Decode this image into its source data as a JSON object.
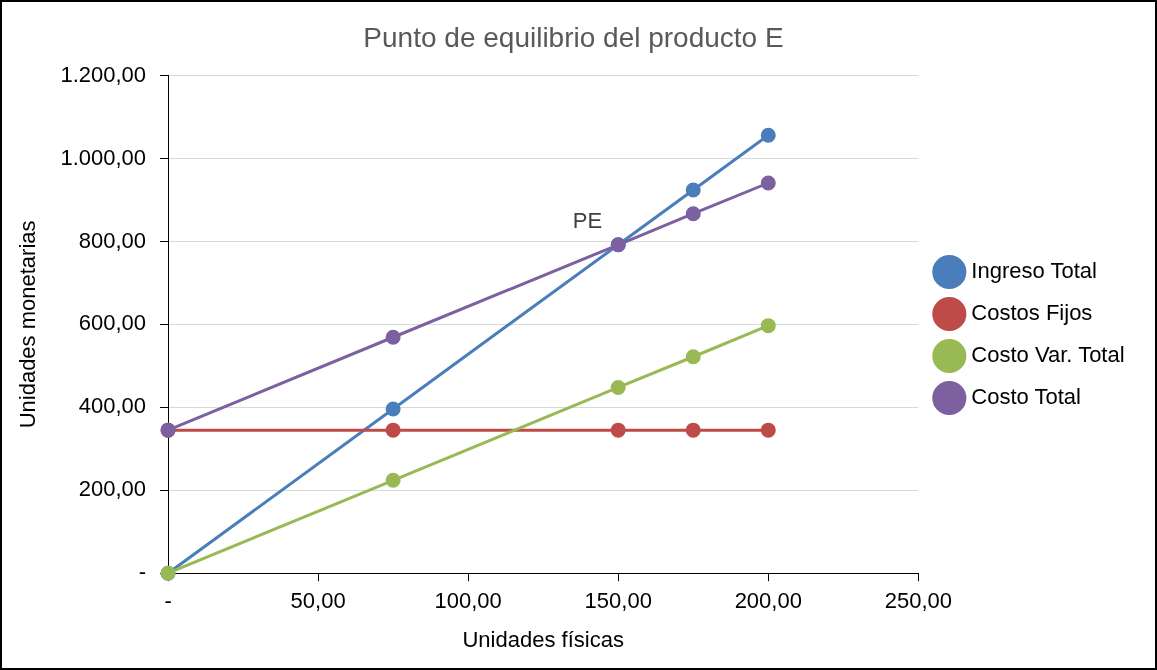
{
  "chart_data": {
    "type": "line",
    "title": "Punto de equilibrio del producto E",
    "xlabel": "Unidades físicas",
    "ylabel": "Unidades monetarias",
    "x": [
      0,
      75,
      150,
      175,
      200
    ],
    "series": [
      {
        "name": "Ingreso Total",
        "color": "#4a7ebb",
        "values": [
          0,
          396,
          792,
          924,
          1056
        ]
      },
      {
        "name": "Costos Fijos",
        "color": "#be4b48",
        "values": [
          345,
          345,
          345,
          345,
          345
        ]
      },
      {
        "name": "Costo Var. Total",
        "color": "#98b954",
        "values": [
          0,
          224,
          448,
          522,
          597
        ]
      },
      {
        "name": "Costo Total",
        "color": "#7d60a0",
        "values": [
          345,
          569,
          792,
          867,
          941
        ]
      }
    ],
    "xlim": [
      0,
      250
    ],
    "xticks": [
      {
        "value": 0,
        "label": "-"
      },
      {
        "value": 50,
        "label": "50,00"
      },
      {
        "value": 100,
        "label": "100,00"
      },
      {
        "value": 150,
        "label": "150,00"
      },
      {
        "value": 200,
        "label": "200,00"
      },
      {
        "value": 250,
        "label": "250,00"
      }
    ],
    "ylim": [
      0,
      1200
    ],
    "yticks": [
      {
        "value": 0,
        "label": "-"
      },
      {
        "value": 200,
        "label": "200,00"
      },
      {
        "value": 400,
        "label": "400,00"
      },
      {
        "value": 600,
        "label": "600,00"
      },
      {
        "value": 800,
        "label": "800,00"
      },
      {
        "value": 1000,
        "label": "1.000,00"
      },
      {
        "value": 1200,
        "label": "1.200,00"
      }
    ],
    "annotations": [
      {
        "text": "PE",
        "x": 150,
        "y": 792
      }
    ],
    "grid": "y",
    "legend": "right",
    "marker": "circle",
    "line_style": "solid"
  }
}
